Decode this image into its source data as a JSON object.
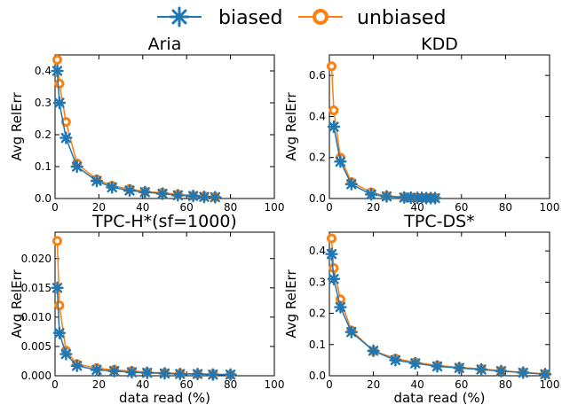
{
  "legend": {
    "position": "top-center",
    "entries": [
      {
        "label": "biased",
        "color": "#1f77b4",
        "marker": "x-icon"
      },
      {
        "label": "unbiased",
        "color": "#ff7f0e",
        "marker": "circle-icon"
      }
    ]
  },
  "chart_data": [
    {
      "type": "line",
      "title": "Aria",
      "xlabel": "",
      "ylabel": "Avg RelErr",
      "xlim": [
        0,
        100
      ],
      "ylim": [
        0,
        0.45
      ],
      "xticks": [
        "0",
        "20",
        "40",
        "60",
        "80",
        "100"
      ],
      "yticks": [
        "0.0",
        "0.1",
        "0.2",
        "0.3",
        "0.4"
      ],
      "series": [
        {
          "name": "biased",
          "x": [
            1,
            2,
            5,
            10,
            19,
            26,
            34,
            41,
            49,
            56,
            63,
            68,
            73
          ],
          "y": [
            0.4,
            0.3,
            0.19,
            0.1,
            0.055,
            0.035,
            0.025,
            0.02,
            0.015,
            0.01,
            0.008,
            0.005,
            0.004
          ]
        },
        {
          "name": "unbiased",
          "x": [
            1,
            2,
            5,
            10,
            19,
            26,
            34,
            41,
            49,
            56,
            63,
            68,
            73
          ],
          "y": [
            0.435,
            0.36,
            0.24,
            0.11,
            0.06,
            0.04,
            0.03,
            0.022,
            0.018,
            0.013,
            0.009,
            0.007,
            0.005
          ]
        }
      ]
    },
    {
      "type": "line",
      "title": "KDD",
      "xlabel": "",
      "ylabel": "Avg RelErr",
      "xlim": [
        0,
        100
      ],
      "ylim": [
        0,
        0.7
      ],
      "xticks": [
        "0",
        "20",
        "40",
        "60",
        "80",
        "100"
      ],
      "yticks": [
        "0.0",
        "0.2",
        "0.4",
        "0.6"
      ],
      "series": [
        {
          "name": "biased",
          "x": [
            2,
            5,
            10,
            19,
            26,
            34,
            37,
            40,
            42,
            44,
            46,
            48
          ],
          "y": [
            0.35,
            0.18,
            0.07,
            0.02,
            0.01,
            0.005,
            0.004,
            0.003,
            0.003,
            0.002,
            0.002,
            0.002
          ]
        },
        {
          "name": "unbiased",
          "x": [
            1,
            2,
            5,
            10,
            19,
            26,
            34,
            37,
            40,
            42,
            44,
            46,
            48
          ],
          "y": [
            0.645,
            0.43,
            0.2,
            0.08,
            0.03,
            0.013,
            0.007,
            0.005,
            0.004,
            0.004,
            0.003,
            0.003,
            0.003
          ]
        }
      ]
    },
    {
      "type": "line",
      "title": "TPC-H*(sf=1000)",
      "xlabel": "data read (%)",
      "ylabel": "Avg RelErr",
      "xlim": [
        0,
        100
      ],
      "ylim": [
        0,
        0.0245
      ],
      "xticks": [
        "0",
        "20",
        "40",
        "60",
        "80",
        "100"
      ],
      "yticks": [
        "0.000",
        "0.005",
        "0.010",
        "0.015",
        "0.020"
      ],
      "series": [
        {
          "name": "biased",
          "x": [
            1,
            2,
            5,
            10,
            19,
            27,
            35,
            42,
            50,
            57,
            65,
            72,
            80
          ],
          "y": [
            0.015,
            0.0073,
            0.0037,
            0.0017,
            0.001,
            0.0008,
            0.0006,
            0.0005,
            0.0004,
            0.0003,
            0.0003,
            0.0002,
            0.0002
          ]
        },
        {
          "name": "unbiased",
          "x": [
            1,
            2,
            5,
            10,
            19,
            27,
            35,
            42,
            50,
            57,
            65,
            72,
            80
          ],
          "y": [
            0.023,
            0.012,
            0.0043,
            0.002,
            0.0013,
            0.001,
            0.0008,
            0.0006,
            0.0005,
            0.0004,
            0.0003,
            0.0003,
            0.0002
          ]
        }
      ]
    },
    {
      "type": "line",
      "title": "TPC-DS*",
      "xlabel": "data read (%)",
      "ylabel": "Avg RelErr",
      "xlim": [
        0,
        100
      ],
      "ylim": [
        0,
        0.46
      ],
      "xticks": [
        "0",
        "20",
        "40",
        "60",
        "80",
        "100"
      ],
      "yticks": [
        "0.0",
        "0.1",
        "0.2",
        "0.3",
        "0.4"
      ],
      "series": [
        {
          "name": "biased",
          "x": [
            1,
            2,
            5,
            10,
            20,
            30,
            39,
            49,
            59,
            69,
            78,
            88,
            98
          ],
          "y": [
            0.39,
            0.31,
            0.22,
            0.14,
            0.08,
            0.05,
            0.04,
            0.03,
            0.025,
            0.02,
            0.015,
            0.01,
            0.005
          ]
        },
        {
          "name": "unbiased",
          "x": [
            1,
            2,
            5,
            10,
            20,
            30,
            39,
            49,
            59,
            69,
            78,
            88,
            98
          ],
          "y": [
            0.44,
            0.345,
            0.245,
            0.145,
            0.08,
            0.055,
            0.043,
            0.033,
            0.027,
            0.022,
            0.016,
            0.011,
            0.006
          ]
        }
      ]
    }
  ]
}
